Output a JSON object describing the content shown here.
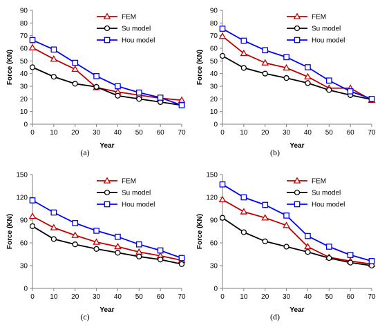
{
  "chart_data": [
    {
      "type": "line",
      "caption": "(a)",
      "xlabel": "Year",
      "ylabel": "Force (KN)",
      "x": [
        0,
        10,
        20,
        30,
        40,
        50,
        60,
        70
      ],
      "xlim": [
        0,
        70
      ],
      "ylim": [
        0,
        90
      ],
      "yticks": [
        0,
        10,
        20,
        30,
        40,
        50,
        60,
        70,
        80,
        90
      ],
      "grid": false,
      "legend": "top-right",
      "series": [
        {
          "name": "FEM",
          "marker": "triangle",
          "color": "#c00000",
          "values": [
            60.5,
            51.5,
            43.5,
            29,
            25.5,
            23,
            20.5,
            19
          ]
        },
        {
          "name": "Su model",
          "marker": "circle",
          "color": "#000000",
          "values": [
            45,
            37.5,
            32,
            29.5,
            22.5,
            20,
            17.5,
            15
          ]
        },
        {
          "name": "Hou model",
          "marker": "square",
          "color": "#0000ff",
          "values": [
            66.5,
            59,
            48.5,
            38,
            30,
            25,
            21,
            15
          ]
        }
      ]
    },
    {
      "type": "line",
      "caption": "(b)",
      "xlabel": "Year",
      "ylabel": "Force (KN)",
      "x": [
        0,
        10,
        20,
        30,
        40,
        50,
        60,
        70
      ],
      "xlim": [
        0,
        70
      ],
      "ylim": [
        0,
        90
      ],
      "yticks": [
        0,
        10,
        20,
        30,
        40,
        50,
        60,
        70,
        80,
        90
      ],
      "grid": false,
      "legend": "top-right",
      "series": [
        {
          "name": "FEM",
          "marker": "triangle",
          "color": "#c00000",
          "values": [
            69.5,
            56,
            48.5,
            44.5,
            37.5,
            28.5,
            28.5,
            19
          ]
        },
        {
          "name": "Su model",
          "marker": "circle",
          "color": "#000000",
          "values": [
            54,
            44.5,
            40,
            36.5,
            32.5,
            27,
            23,
            19.5
          ]
        },
        {
          "name": "Hou model",
          "marker": "square",
          "color": "#0000ff",
          "values": [
            75.5,
            66,
            58.5,
            53,
            45,
            34.5,
            26,
            20
          ]
        }
      ]
    },
    {
      "type": "line",
      "caption": "(c)",
      "xlabel": "Year",
      "ylabel": "Force (KN)",
      "x": [
        0,
        10,
        20,
        30,
        40,
        50,
        60,
        70
      ],
      "xlim": [
        0,
        70
      ],
      "ylim": [
        0,
        150
      ],
      "yticks": [
        0,
        30,
        60,
        90,
        120,
        150
      ],
      "grid": false,
      "legend": "top-right",
      "series": [
        {
          "name": "FEM",
          "marker": "triangle",
          "color": "#c00000",
          "values": [
            95,
            80,
            70,
            61,
            55,
            48,
            43,
            37
          ]
        },
        {
          "name": "Su model",
          "marker": "circle",
          "color": "#000000",
          "values": [
            82,
            65,
            58,
            52,
            47,
            42,
            38,
            32
          ]
        },
        {
          "name": "Hou model",
          "marker": "square",
          "color": "#0000ff",
          "values": [
            116,
            100,
            86,
            76,
            68,
            58,
            50,
            40
          ]
        }
      ]
    },
    {
      "type": "line",
      "caption": "(d)",
      "xlabel": "Year",
      "ylabel": "Force (KN)",
      "x": [
        0,
        10,
        20,
        30,
        40,
        50,
        60,
        70
      ],
      "xlim": [
        0,
        70
      ],
      "ylim": [
        0,
        150
      ],
      "yticks": [
        0,
        30,
        60,
        90,
        120,
        150
      ],
      "grid": false,
      "legend": "top-right",
      "series": [
        {
          "name": "FEM",
          "marker": "triangle",
          "color": "#c00000",
          "values": [
            117,
            101,
            93,
            83,
            55,
            41,
            36,
            32
          ]
        },
        {
          "name": "Su model",
          "marker": "circle",
          "color": "#000000",
          "values": [
            93,
            74,
            62,
            55,
            48,
            40,
            34,
            30
          ]
        },
        {
          "name": "Hou model",
          "marker": "square",
          "color": "#0000ff",
          "values": [
            137,
            120,
            110,
            96,
            69,
            55,
            44,
            36
          ]
        }
      ]
    }
  ]
}
